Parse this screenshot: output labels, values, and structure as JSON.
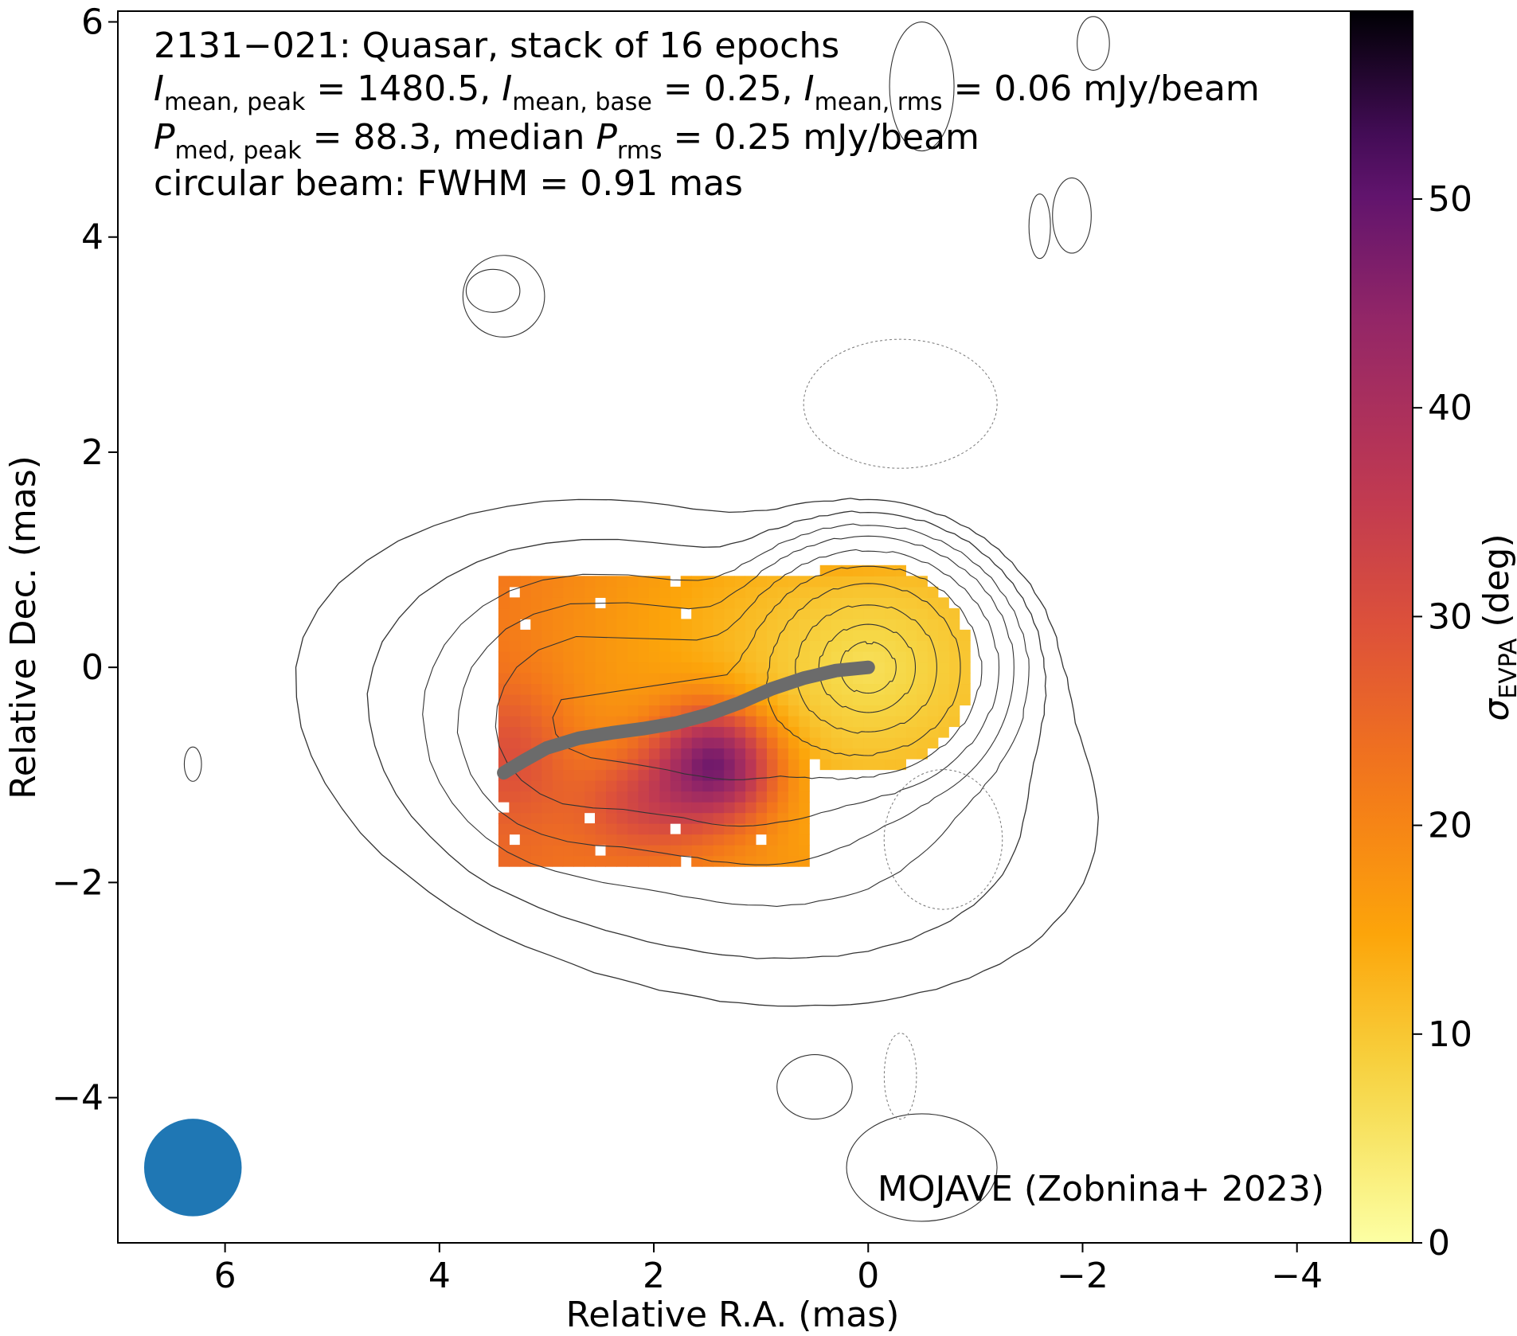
{
  "chart_data": {
    "type": "heatmap",
    "source_label": "2131−021",
    "object_class": "Quasar",
    "stack_note": "stack of 16 epochs",
    "info_lines": [
      {
        "symbol": "I",
        "subscript": "mean, peak",
        "value": "1480.5"
      },
      {
        "symbol": "I",
        "subscript": "mean, base",
        "value": "0.25"
      },
      {
        "symbol": "I",
        "subscript": "mean, rms",
        "value": "0.06",
        "unit": "mJy/beam"
      },
      {
        "symbol": "P",
        "subscript": "med, peak",
        "value": "88.3"
      },
      {
        "prefix": "median",
        "symbol": "P",
        "subscript": "rms",
        "value": "0.25",
        "unit": "mJy/beam"
      }
    ],
    "beam_text": "circular beam: FWHM = 0.91 mas",
    "beam": {
      "fwhm_mas": 0.91,
      "center": [
        6.3,
        -4.65
      ],
      "color": "#1f77b4"
    },
    "credit": "MOJAVE (Zobnina+ 2023)",
    "xlabel": "Relative R.A. (mas)",
    "ylabel": "Relative Dec. (mas)",
    "xlim": [
      7.0,
      -4.5
    ],
    "ylim": [
      -5.35,
      6.1
    ],
    "x_ticks": [
      6,
      4,
      2,
      0,
      -2,
      -4
    ],
    "y_ticks": [
      6,
      4,
      2,
      0,
      -2,
      -4
    ],
    "x_tick_labels": [
      "6",
      "4",
      "2",
      "0",
      "−2",
      "−4"
    ],
    "y_tick_labels": [
      "6",
      "4",
      "2",
      "0",
      "−2",
      "−4"
    ],
    "colorbar": {
      "label_symbol": "σ",
      "label_subscript": "EVPA",
      "label_unit": "(deg)",
      "range": [
        0,
        59
      ],
      "ticks": [
        0,
        10,
        20,
        30,
        40,
        50
      ],
      "tick_labels": [
        "0",
        "10",
        "20",
        "30",
        "40",
        "50"
      ],
      "colormap": "inferno_r"
    },
    "ridgeline": {
      "color": "#6b6b6b",
      "points": [
        [
          0.0,
          0.0
        ],
        [
          0.3,
          -0.03
        ],
        [
          0.6,
          -0.1
        ],
        [
          0.9,
          -0.2
        ],
        [
          1.2,
          -0.33
        ],
        [
          1.5,
          -0.44
        ],
        [
          1.8,
          -0.52
        ],
        [
          2.1,
          -0.57
        ],
        [
          2.4,
          -0.61
        ],
        [
          2.7,
          -0.66
        ],
        [
          3.0,
          -0.75
        ],
        [
          3.2,
          -0.86
        ],
        [
          3.4,
          -0.98
        ]
      ]
    },
    "grid": false
  }
}
